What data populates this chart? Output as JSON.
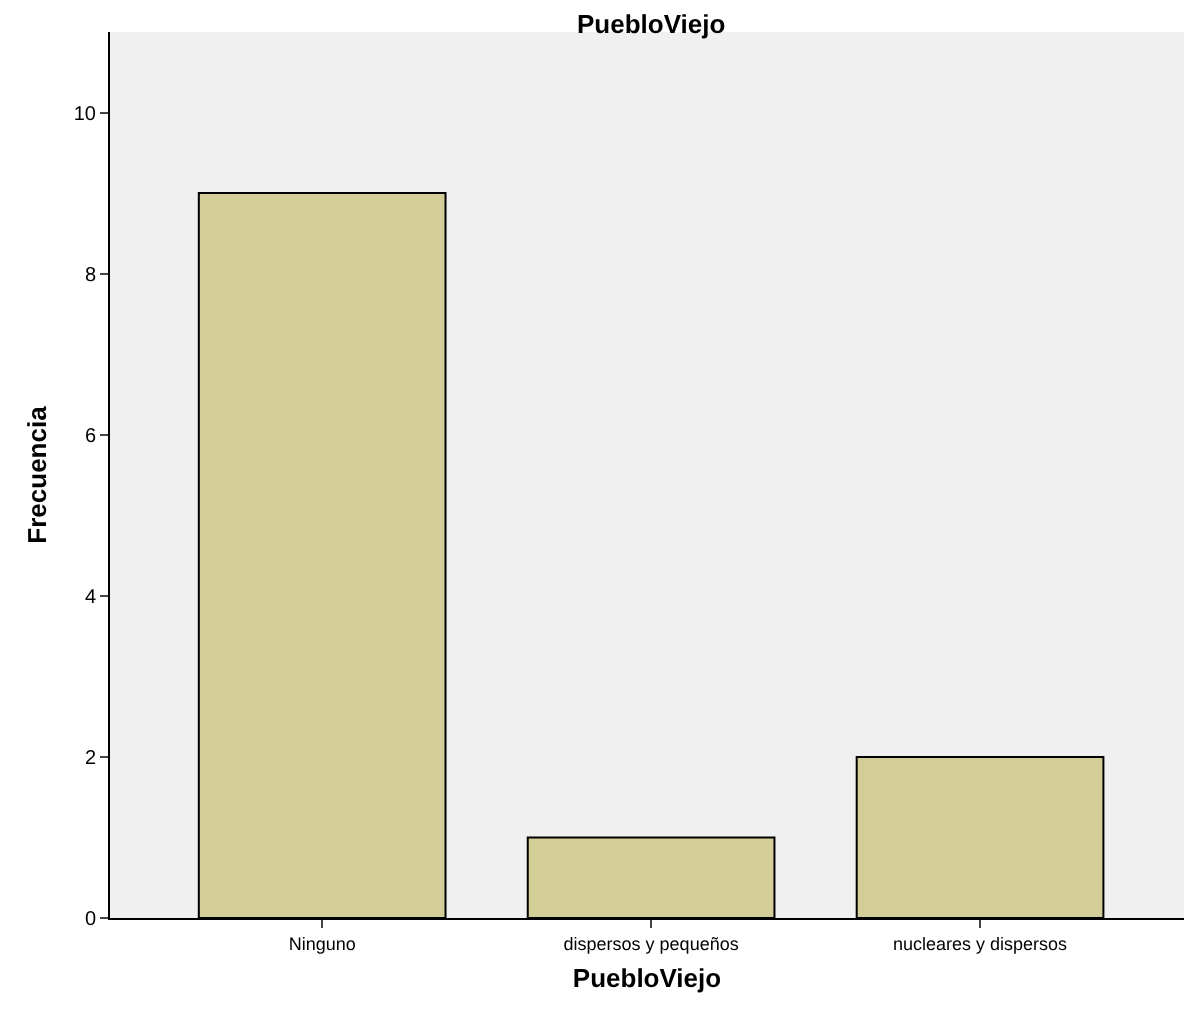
{
  "chart_data": {
    "type": "bar",
    "title": "PuebloViejo",
    "xlabel": "PuebloViejo",
    "ylabel": "Frecuencia",
    "categories": [
      "Ninguno",
      "dispersos y pequeños",
      "nucleares y dispersos"
    ],
    "values": [
      9,
      1,
      2
    ],
    "color": "#d3ce97",
    "ylim": [
      0,
      11
    ],
    "yticks": [
      0,
      2,
      4,
      6,
      8,
      10
    ]
  }
}
